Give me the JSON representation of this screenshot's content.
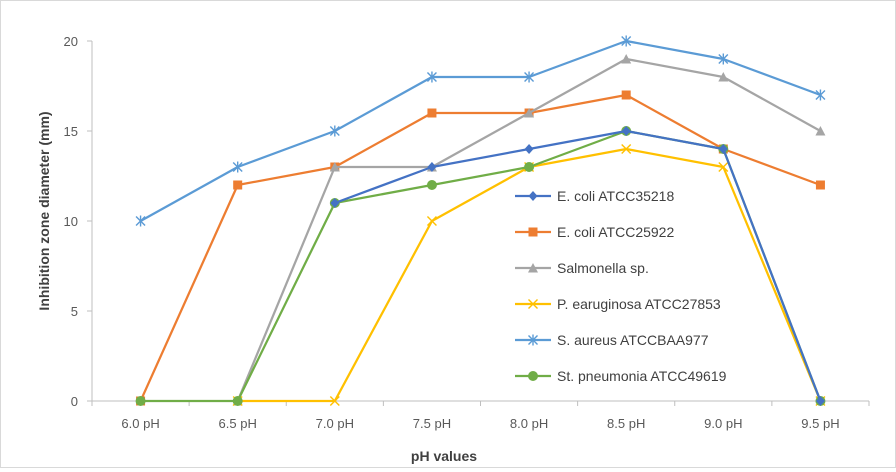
{
  "chart_data": {
    "type": "line",
    "title": "",
    "xlabel": "pH values",
    "ylabel": "Inhibition zone diameter (mm)",
    "categories": [
      "6.0 pH",
      "6.5 pH",
      "7.0 pH",
      "7.5 pH",
      "8.0 pH",
      "8.5 pH",
      "9.0 pH",
      "9.5 pH"
    ],
    "ylim": [
      0,
      20
    ],
    "yticks": [
      0,
      5,
      10,
      15,
      20
    ],
    "legend_position": "center-right",
    "grid": false,
    "series": [
      {
        "name": "E. coli ATCC35218",
        "color": "#4472C4",
        "marker": "diamond",
        "values": [
          null,
          null,
          11,
          13,
          14,
          15,
          14,
          0
        ]
      },
      {
        "name": "E. coli ATCC25922",
        "color": "#ED7D31",
        "marker": "square",
        "values": [
          0,
          12,
          13,
          16,
          16,
          17,
          14,
          12
        ]
      },
      {
        "name": "Salmonella sp.",
        "color": "#A5A5A5",
        "marker": "triangle",
        "values": [
          null,
          0,
          13,
          13,
          16,
          19,
          18,
          15
        ]
      },
      {
        "name": "P. earuginosa ATCC27853",
        "color": "#FFC000",
        "marker": "x",
        "values": [
          null,
          0,
          0,
          10,
          13,
          14,
          13,
          0
        ]
      },
      {
        "name": "S. aureus ATCCBAA977",
        "color": "#5B9BD5",
        "marker": "star",
        "values": [
          10,
          13,
          15,
          18,
          18,
          20,
          19,
          17
        ]
      },
      {
        "name": "St. pneumonia ATCC49619",
        "color": "#70AD47",
        "marker": "circle",
        "values": [
          0,
          0,
          11,
          12,
          13,
          15,
          14,
          0
        ]
      }
    ]
  }
}
